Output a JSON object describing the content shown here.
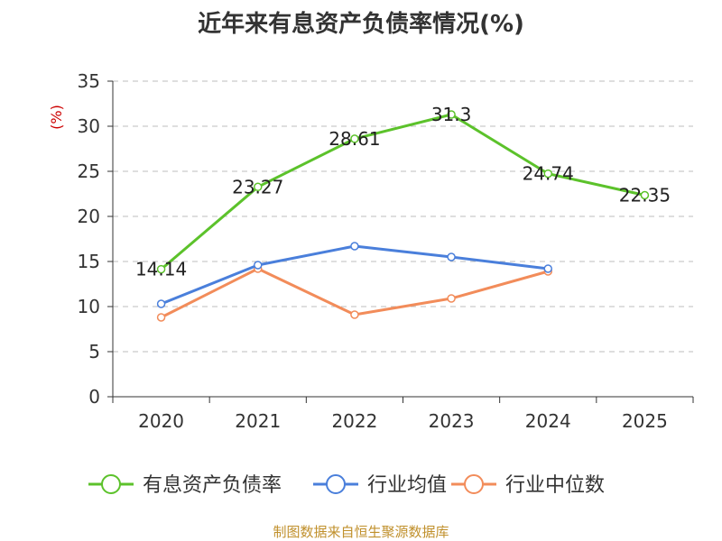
{
  "chart_data": {
    "type": "line",
    "title": "近年来有息资产负债率情况(%)",
    "ylabel": "(%)",
    "xlabel": "",
    "categories": [
      "2020",
      "2021",
      "2022",
      "2023",
      "2024",
      "2025"
    ],
    "ylim": [
      0,
      35
    ],
    "yticks": [
      0,
      5,
      10,
      15,
      20,
      25,
      30,
      35
    ],
    "grid": true,
    "legend": "bottom",
    "series": [
      {
        "name": "有息资产负债率",
        "color": "#5cc22b",
        "values": [
          14.14,
          23.27,
          28.61,
          31.3,
          24.74,
          22.35
        ],
        "labels": [
          "14.14",
          "23.27",
          "28.61",
          "31.3",
          "24.74",
          "22.35"
        ]
      },
      {
        "name": "行业均值",
        "color": "#4a7fdb",
        "values": [
          10.3,
          14.6,
          16.7,
          15.5,
          14.2,
          null
        ]
      },
      {
        "name": "行业中位数",
        "color": "#f28c5a",
        "values": [
          8.8,
          14.2,
          9.1,
          10.9,
          13.9,
          null
        ]
      }
    ],
    "source": "制图数据来自恒生聚源数据库"
  }
}
